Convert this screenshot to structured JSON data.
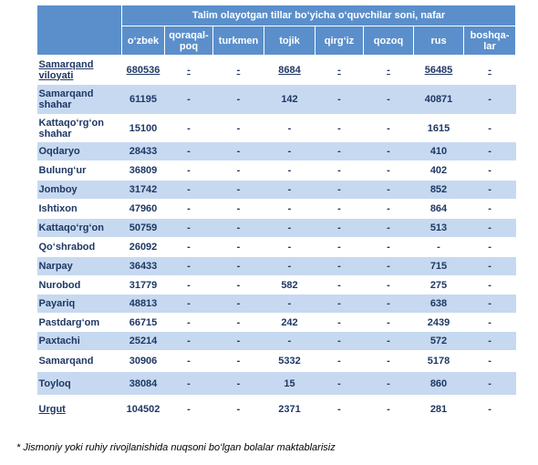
{
  "table": {
    "title": "Talim olayotgan tillar bo‘yicha o‘quvchilar soni, nafar",
    "columns": [
      "o‘zbek",
      "qoraqal-poq",
      "turkmen",
      "tojik",
      "qirg‘iz",
      "qozoq",
      "rus",
      "boshqa-lar"
    ],
    "rows": [
      [
        "Samarqand viloyati",
        "680536",
        "-",
        "-",
        "8684",
        "-",
        "-",
        "56485",
        "-"
      ],
      [
        "Samarqand shahar",
        "61195",
        "-",
        "-",
        "142",
        "-",
        "-",
        "40871",
        "-"
      ],
      [
        "Kattaqo‘rg‘on shahar",
        "15100",
        "-",
        "-",
        "-",
        "-",
        "-",
        "1615",
        "-"
      ],
      [
        "Oqdaryo",
        "28433",
        "-",
        "-",
        "-",
        "-",
        "-",
        "410",
        "-"
      ],
      [
        "Bulung‘ur",
        "36809",
        "-",
        "-",
        "-",
        "-",
        "-",
        "402",
        "-"
      ],
      [
        "Jomboy",
        "31742",
        "-",
        "-",
        "-",
        "-",
        "-",
        "852",
        "-"
      ],
      [
        "Ishtixon",
        "47960",
        "-",
        "-",
        "-",
        "-",
        "-",
        "864",
        "-"
      ],
      [
        "Kattaqo‘rg‘on",
        "50759",
        "-",
        "-",
        "-",
        "-",
        "-",
        "513",
        "-"
      ],
      [
        "Qo‘shrabod",
        "26092",
        "-",
        "-",
        "-",
        "-",
        "-",
        "-",
        "-"
      ],
      [
        "Narpay",
        "36433",
        "-",
        "-",
        "-",
        "-",
        "-",
        "715",
        "-"
      ],
      [
        "Nurobod",
        "31779",
        "-",
        "-",
        "582",
        "-",
        "-",
        "275",
        "-"
      ],
      [
        "Payariq",
        "48813",
        "-",
        "-",
        "-",
        "-",
        "-",
        "638",
        "-"
      ],
      [
        "Pastdarg‘om",
        "66715",
        "-",
        "-",
        "242",
        "-",
        "-",
        "2439",
        "-"
      ],
      [
        "Paxtachi",
        "25214",
        "-",
        "-",
        "-",
        "-",
        "-",
        "572",
        "-"
      ],
      [
        "Samarqand",
        "30906",
        "-",
        "-",
        "5332",
        "-",
        "-",
        "5178",
        "-"
      ],
      [
        "Toyloq",
        "38084",
        "-",
        "-",
        "15",
        "-",
        "-",
        "860",
        "-"
      ],
      [
        "Urgut",
        "104502",
        "-",
        "-",
        "2371",
        "-",
        "-",
        "281",
        "-"
      ]
    ]
  },
  "footnote": "* Jismoniy yoki ruhiy rivojlanishida nuqsoni bo‘lgan bolalar maktablarisiz"
}
